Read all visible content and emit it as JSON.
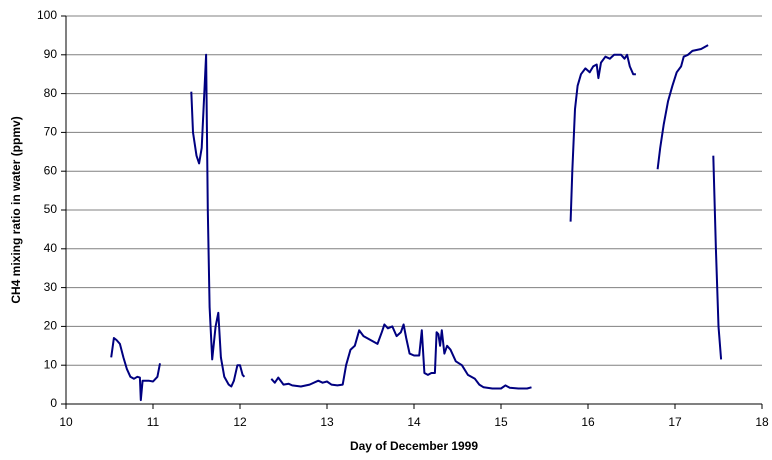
{
  "chart_data": {
    "type": "line",
    "x_label": "Day of December 1999",
    "y_label": "CH4 mixing ratio in water (ppmv)",
    "xlim": [
      10,
      18
    ],
    "xticks": [
      10,
      11,
      12,
      13,
      14,
      15,
      16,
      17,
      18
    ],
    "ylim": [
      0,
      100
    ],
    "yticks": [
      0,
      10,
      20,
      30,
      40,
      50,
      60,
      70,
      80,
      90,
      100
    ],
    "grid": true,
    "x": [
      10.52,
      10.55,
      10.58,
      10.62,
      10.66,
      10.7,
      10.74,
      10.78,
      10.82,
      10.85,
      10.86,
      10.88,
      10.95,
      11.0,
      11.05,
      11.08,
      null,
      11.44,
      11.46,
      11.5,
      11.53,
      11.56,
      11.6,
      11.61,
      11.63,
      11.65,
      11.68,
      11.72,
      11.75,
      11.78,
      11.82,
      11.87,
      11.9,
      11.93,
      11.97,
      12.0,
      12.03,
      12.05,
      null,
      12.36,
      12.4,
      12.44,
      12.5,
      12.56,
      12.6,
      12.7,
      12.8,
      12.9,
      12.95,
      13.0,
      13.05,
      13.12,
      13.18,
      13.22,
      13.27,
      13.32,
      13.37,
      13.42,
      13.5,
      13.58,
      13.63,
      13.66,
      13.7,
      13.75,
      13.8,
      13.85,
      13.88,
      13.91,
      13.95,
      14.0,
      14.06,
      14.09,
      14.12,
      14.16,
      14.2,
      14.24,
      14.26,
      14.28,
      14.3,
      14.32,
      14.35,
      14.38,
      14.42,
      14.48,
      14.55,
      14.62,
      14.7,
      14.75,
      14.8,
      14.9,
      15.0,
      15.05,
      15.1,
      15.2,
      15.3,
      15.35,
      null,
      15.8,
      15.82,
      15.85,
      15.88,
      15.92,
      15.97,
      16.02,
      16.06,
      16.1,
      16.12,
      16.15,
      16.2,
      16.25,
      16.3,
      16.38,
      16.42,
      16.45,
      16.48,
      16.52,
      16.55,
      null,
      16.8,
      16.83,
      16.87,
      16.92,
      16.97,
      17.02,
      17.07,
      17.1,
      17.15,
      17.2,
      17.3,
      17.38,
      null,
      17.44,
      17.47,
      17.5,
      17.53
    ],
    "series": [
      {
        "color": "#000080",
        "values": [
          12,
          17,
          16.5,
          15.5,
          12,
          9,
          7,
          6.5,
          7,
          6.8,
          1,
          6,
          6,
          5.8,
          7,
          10.5,
          null,
          80.5,
          70,
          64,
          62,
          66,
          85,
          90,
          50,
          25,
          11.5,
          20,
          23.5,
          12,
          7,
          5,
          4.5,
          6,
          10,
          10,
          7.5,
          7,
          null,
          6.5,
          5.5,
          6.8,
          5,
          5.2,
          4.8,
          4.5,
          5,
          6,
          5.5,
          5.8,
          5,
          4.8,
          5,
          10,
          14,
          15,
          19,
          17.5,
          16.5,
          15.5,
          18.5,
          20.5,
          19.5,
          20,
          17.5,
          18.5,
          20.5,
          17,
          13,
          12.5,
          12.5,
          19,
          8,
          7.5,
          8,
          8,
          18.5,
          18,
          15,
          19,
          13,
          15,
          14,
          11,
          10,
          7.5,
          6.5,
          5,
          4.3,
          4,
          4,
          4.8,
          4.2,
          4,
          4,
          4.3,
          null,
          47,
          60,
          76,
          82,
          85,
          86.5,
          85.5,
          87,
          87.5,
          84,
          88,
          89.5,
          89,
          90,
          90,
          89,
          90,
          87,
          85,
          85,
          null,
          60.5,
          66,
          72,
          78,
          82,
          85.5,
          87,
          89.5,
          90,
          91,
          91.5,
          92.5,
          null,
          64,
          40,
          20,
          11.5
        ]
      }
    ]
  }
}
